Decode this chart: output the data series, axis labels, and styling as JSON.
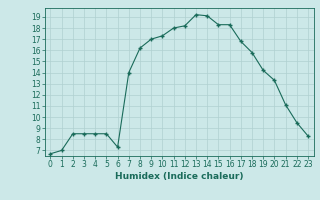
{
  "x": [
    0,
    1,
    2,
    3,
    4,
    5,
    6,
    7,
    8,
    9,
    10,
    11,
    12,
    13,
    14,
    15,
    16,
    17,
    18,
    19,
    20,
    21,
    22,
    23
  ],
  "y": [
    6.7,
    7.0,
    8.5,
    8.5,
    8.5,
    8.5,
    7.3,
    14.0,
    16.2,
    17.0,
    17.3,
    18.0,
    18.2,
    19.2,
    19.1,
    18.3,
    18.3,
    16.8,
    15.8,
    14.2,
    13.3,
    11.1,
    9.5,
    8.3
  ],
  "xlabel": "Humidex (Indice chaleur)",
  "xlim": [
    -0.5,
    23.5
  ],
  "ylim": [
    6.5,
    19.8
  ],
  "yticks": [
    7,
    8,
    9,
    10,
    11,
    12,
    13,
    14,
    15,
    16,
    17,
    18,
    19
  ],
  "xticks": [
    0,
    1,
    2,
    3,
    4,
    5,
    6,
    7,
    8,
    9,
    10,
    11,
    12,
    13,
    14,
    15,
    16,
    17,
    18,
    19,
    20,
    21,
    22,
    23
  ],
  "line_color": "#1a6b5a",
  "marker_color": "#1a6b5a",
  "bg_color": "#cce8e8",
  "grid_color": "#b0d0d0",
  "axis_color": "#1a6b5a",
  "xlabel_fontsize": 6.5,
  "tick_fontsize": 5.5
}
